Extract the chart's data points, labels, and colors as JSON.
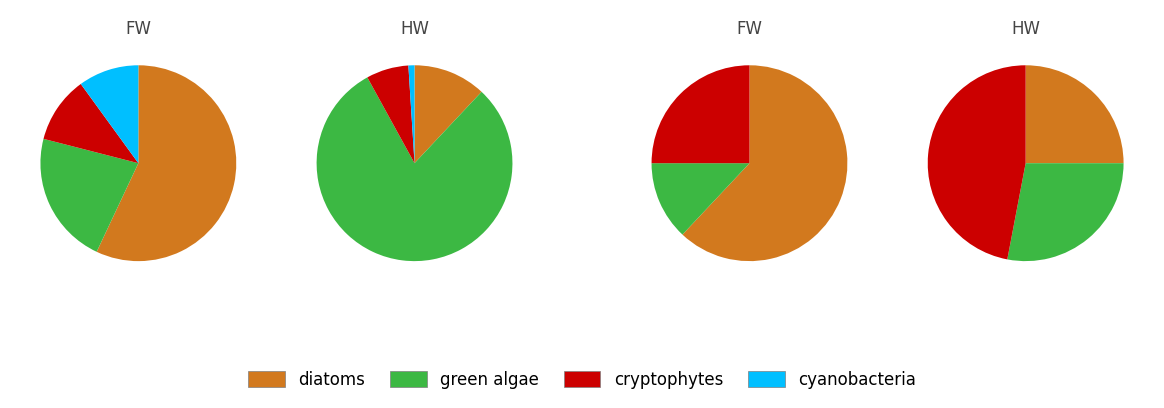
{
  "charts": [
    {
      "title": "FW",
      "values": [
        57,
        22,
        11,
        10
      ],
      "colors": [
        "#D2791E",
        "#3CB843",
        "#CC0000",
        "#00BFFF"
      ],
      "startangle": 90,
      "counterclock": false
    },
    {
      "title": "HW",
      "values": [
        12,
        80,
        7,
        1
      ],
      "colors": [
        "#D2791E",
        "#3CB843",
        "#CC0000",
        "#00BFFF"
      ],
      "startangle": 90,
      "counterclock": false
    },
    {
      "title": "FW",
      "values": [
        62,
        13,
        25,
        0
      ],
      "colors": [
        "#D2791E",
        "#3CB843",
        "#CC0000",
        "#00BFFF"
      ],
      "startangle": 90,
      "counterclock": false
    },
    {
      "title": "HW",
      "values": [
        25,
        28,
        47,
        0
      ],
      "colors": [
        "#D2791E",
        "#3CB843",
        "#CC0000",
        "#00BFFF"
      ],
      "startangle": 90,
      "counterclock": false
    }
  ],
  "legend_labels": [
    "diatoms",
    "green algae",
    "cryptophytes",
    "cyanobacteria"
  ],
  "legend_colors": [
    "#D2791E",
    "#3CB843",
    "#CC0000",
    "#00BFFF"
  ],
  "background_color": "#FFFFFF"
}
